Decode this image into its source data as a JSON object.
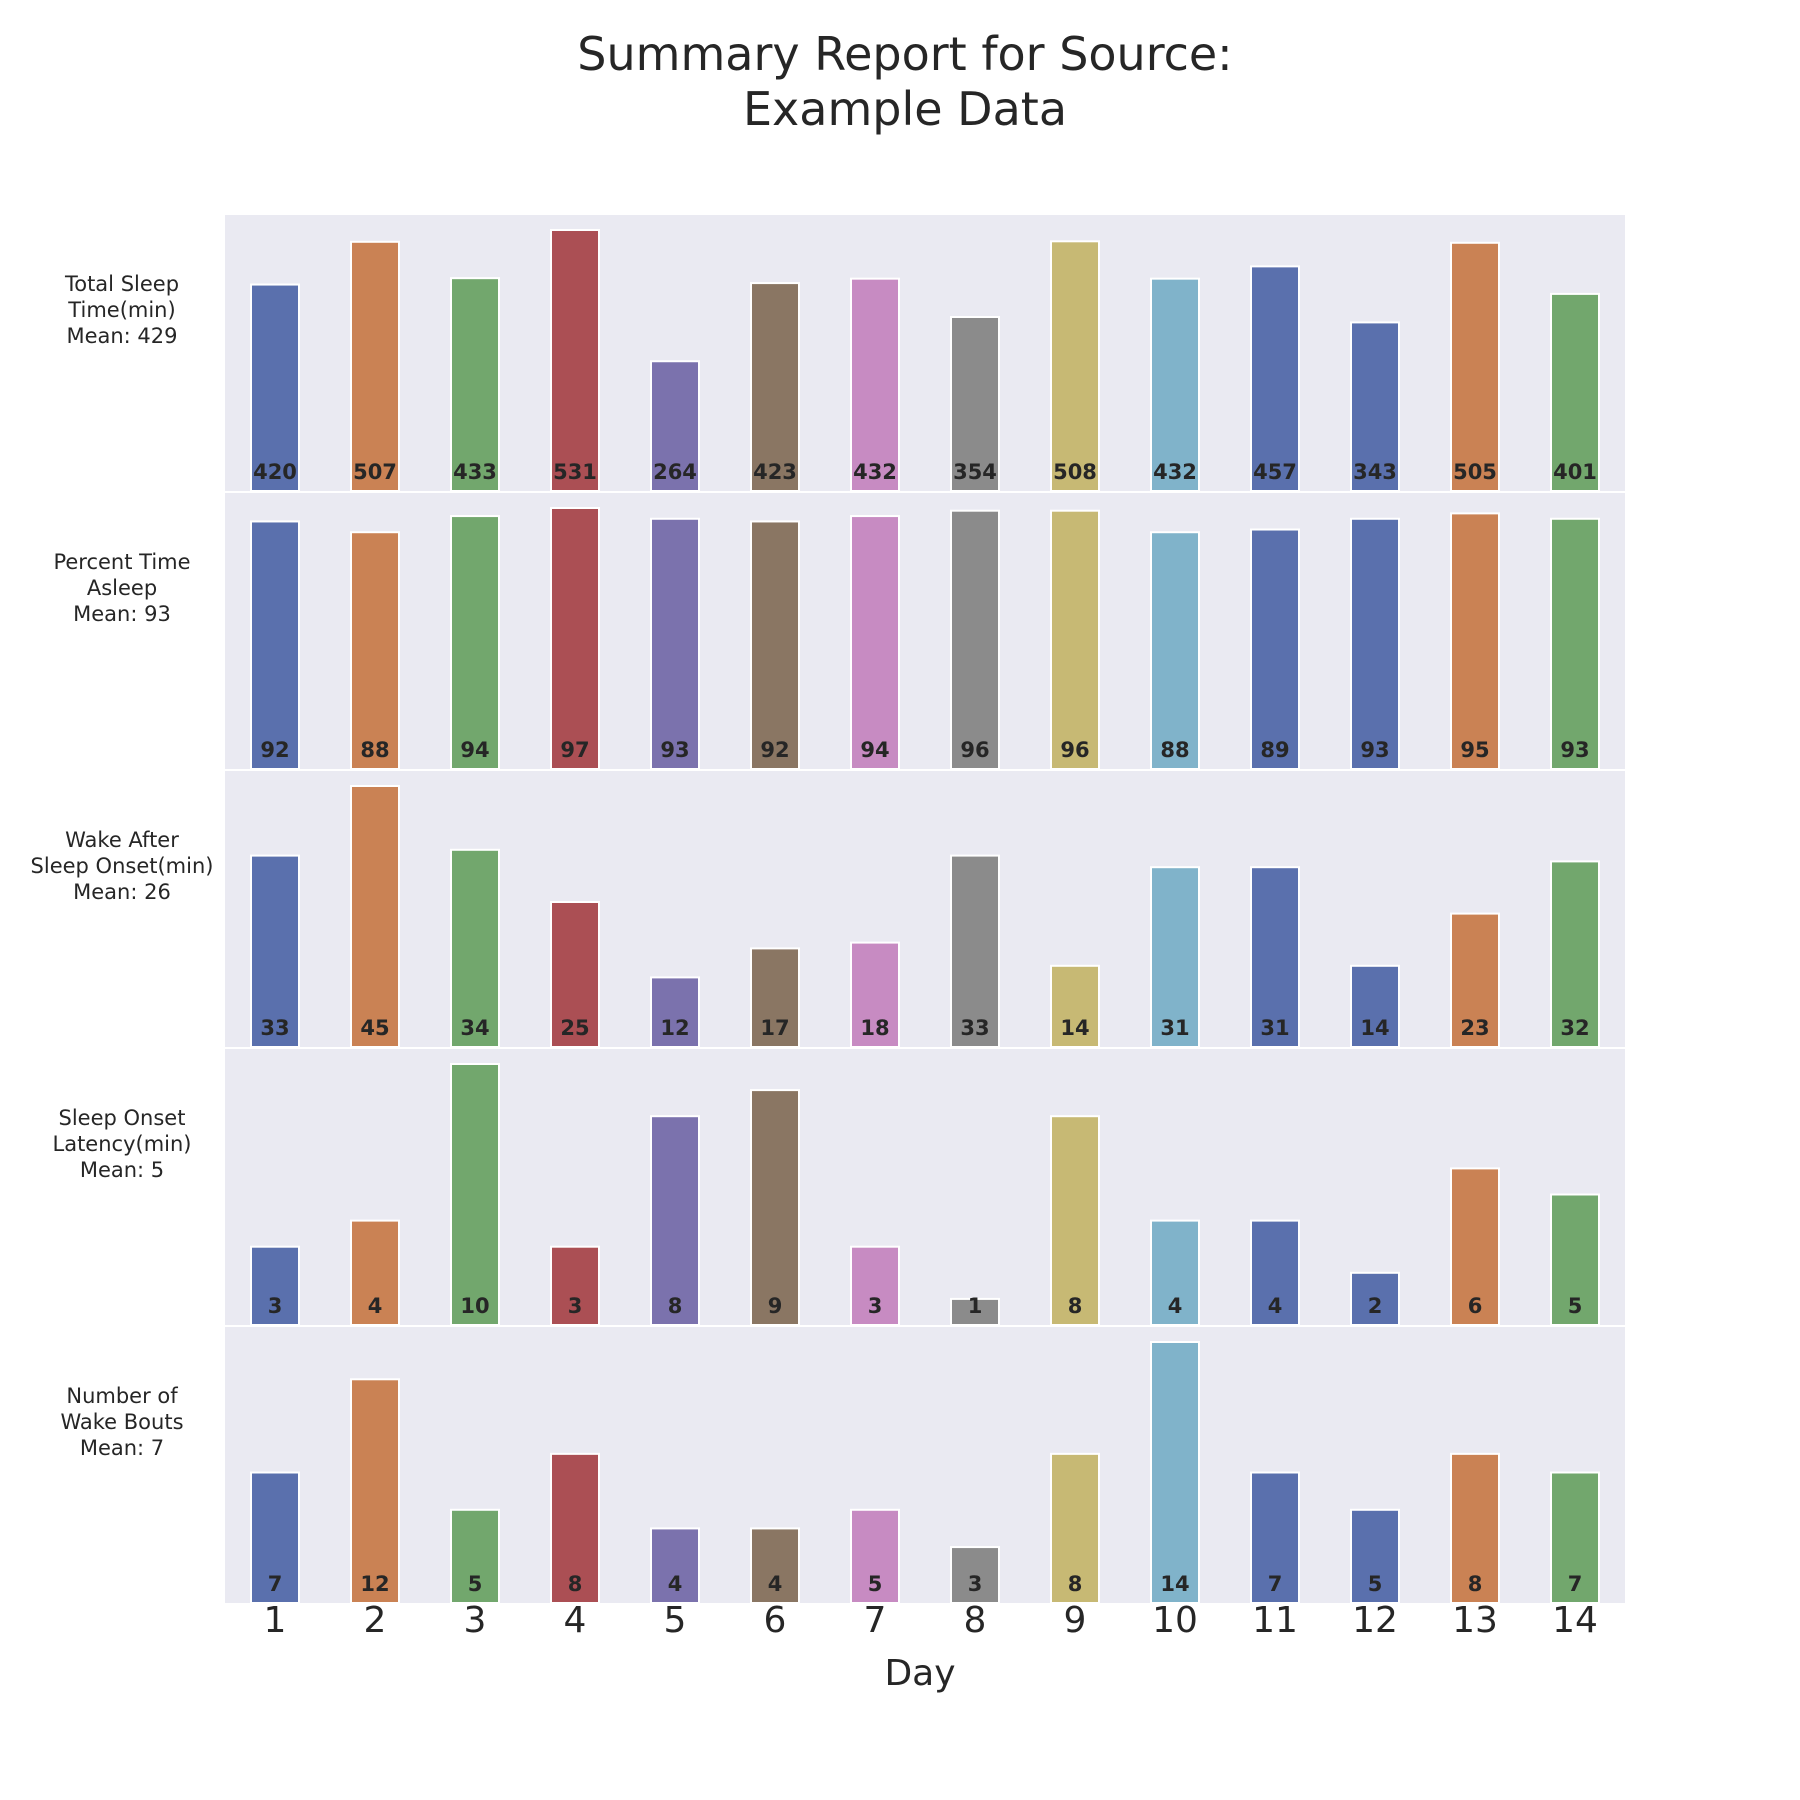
{
  "chart_data": {
    "type": "bar",
    "title_lines": [
      "Summary Report for Source:",
      "Example Data"
    ],
    "xlabel": "Day",
    "categories": [
      "1",
      "2",
      "3",
      "4",
      "5",
      "6",
      "7",
      "8",
      "9",
      "10",
      "11",
      "12",
      "13",
      "14"
    ],
    "colors": [
      "#5a70ad",
      "#ca8254",
      "#72a76d",
      "#ab4f54",
      "#7b72ad",
      "#8a7663",
      "#c78bc2",
      "#8b8b8b",
      "#c7b974",
      "#80b3ca",
      "#5a70ad",
      "#5a70ad",
      "#ca8254",
      "#72a76d"
    ],
    "panel_background": "#eaeaf2",
    "grid": false,
    "panels": [
      {
        "label_lines": [
          "Total Sleep",
          "Time(min)",
          "Mean: 429"
        ],
        "values": [
          420,
          507,
          433,
          531,
          264,
          423,
          432,
          354,
          508,
          432,
          457,
          343,
          505,
          401
        ]
      },
      {
        "label_lines": [
          "Percent Time",
          "Asleep",
          "Mean: 93"
        ],
        "values": [
          92,
          88,
          94,
          97,
          93,
          92,
          94,
          96,
          96,
          88,
          89,
          93,
          95,
          93
        ]
      },
      {
        "label_lines": [
          "Wake After",
          "Sleep Onset(min)",
          "Mean: 26"
        ],
        "values": [
          33,
          45,
          34,
          25,
          12,
          17,
          18,
          33,
          14,
          31,
          31,
          14,
          23,
          32
        ]
      },
      {
        "label_lines": [
          "Sleep Onset",
          "Latency(min)",
          "Mean: 5"
        ],
        "values": [
          3,
          4,
          10,
          3,
          8,
          9,
          3,
          1,
          8,
          4,
          4,
          2,
          6,
          5
        ]
      },
      {
        "label_lines": [
          "Number of",
          "Wake Bouts",
          "Mean: 7"
        ],
        "values": [
          7,
          12,
          5,
          8,
          4,
          4,
          5,
          3,
          8,
          14,
          7,
          5,
          8,
          7
        ]
      }
    ]
  }
}
